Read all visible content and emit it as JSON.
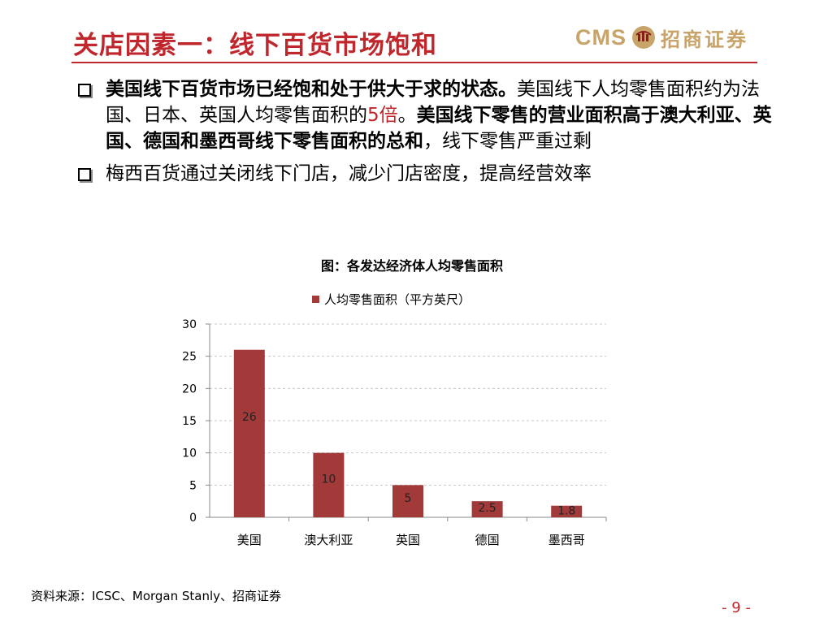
{
  "header": {
    "title": "关店因素一：线下百货市场饱和",
    "logo_text": "CMS",
    "logo_cn": "招商证券"
  },
  "bullets": [
    {
      "parts": [
        {
          "text": "美国线下百货市场已经饱和处于供大于求的状态。",
          "style": "bold"
        },
        {
          "text": "美国线下人均零售面积约为法国、日本、英国人均零售面积的",
          "style": "normal"
        },
        {
          "text": "5倍",
          "style": "red"
        },
        {
          "text": "。",
          "style": "normal"
        },
        {
          "text": "美国线下零售的营业面积高于澳大利亚、英国、德国和墨西哥线下零售面积的总和",
          "style": "bold"
        },
        {
          "text": "，线下零售严重过剩",
          "style": "normal"
        }
      ]
    },
    {
      "parts": [
        {
          "text": "梅西百货通过关闭线下门店，减少门店密度，提高经营效率",
          "style": "normal"
        }
      ]
    }
  ],
  "chart_data": {
    "type": "bar",
    "title": "图：各发达经济体人均零售面积",
    "categories": [
      "美国",
      "澳大利亚",
      "英国",
      "德国",
      "墨西哥"
    ],
    "series": [
      {
        "name": "人均零售面积（平方英尺）",
        "values": [
          26,
          10,
          5,
          2.5,
          1.8
        ],
        "color": "#a23a3a"
      }
    ],
    "ylim": [
      0,
      30
    ],
    "yticks": [
      0,
      5,
      10,
      15,
      20,
      25,
      30
    ],
    "grid": true,
    "legend": "top",
    "xlabel": "",
    "ylabel": ""
  },
  "footer": {
    "source": "资料来源：ICSC、Morgan Stanly、招商证券",
    "page": "- 9 -"
  },
  "colors": {
    "accent": "#c0272d",
    "bar": "#a23a3a",
    "logo": "#c8a46a"
  }
}
